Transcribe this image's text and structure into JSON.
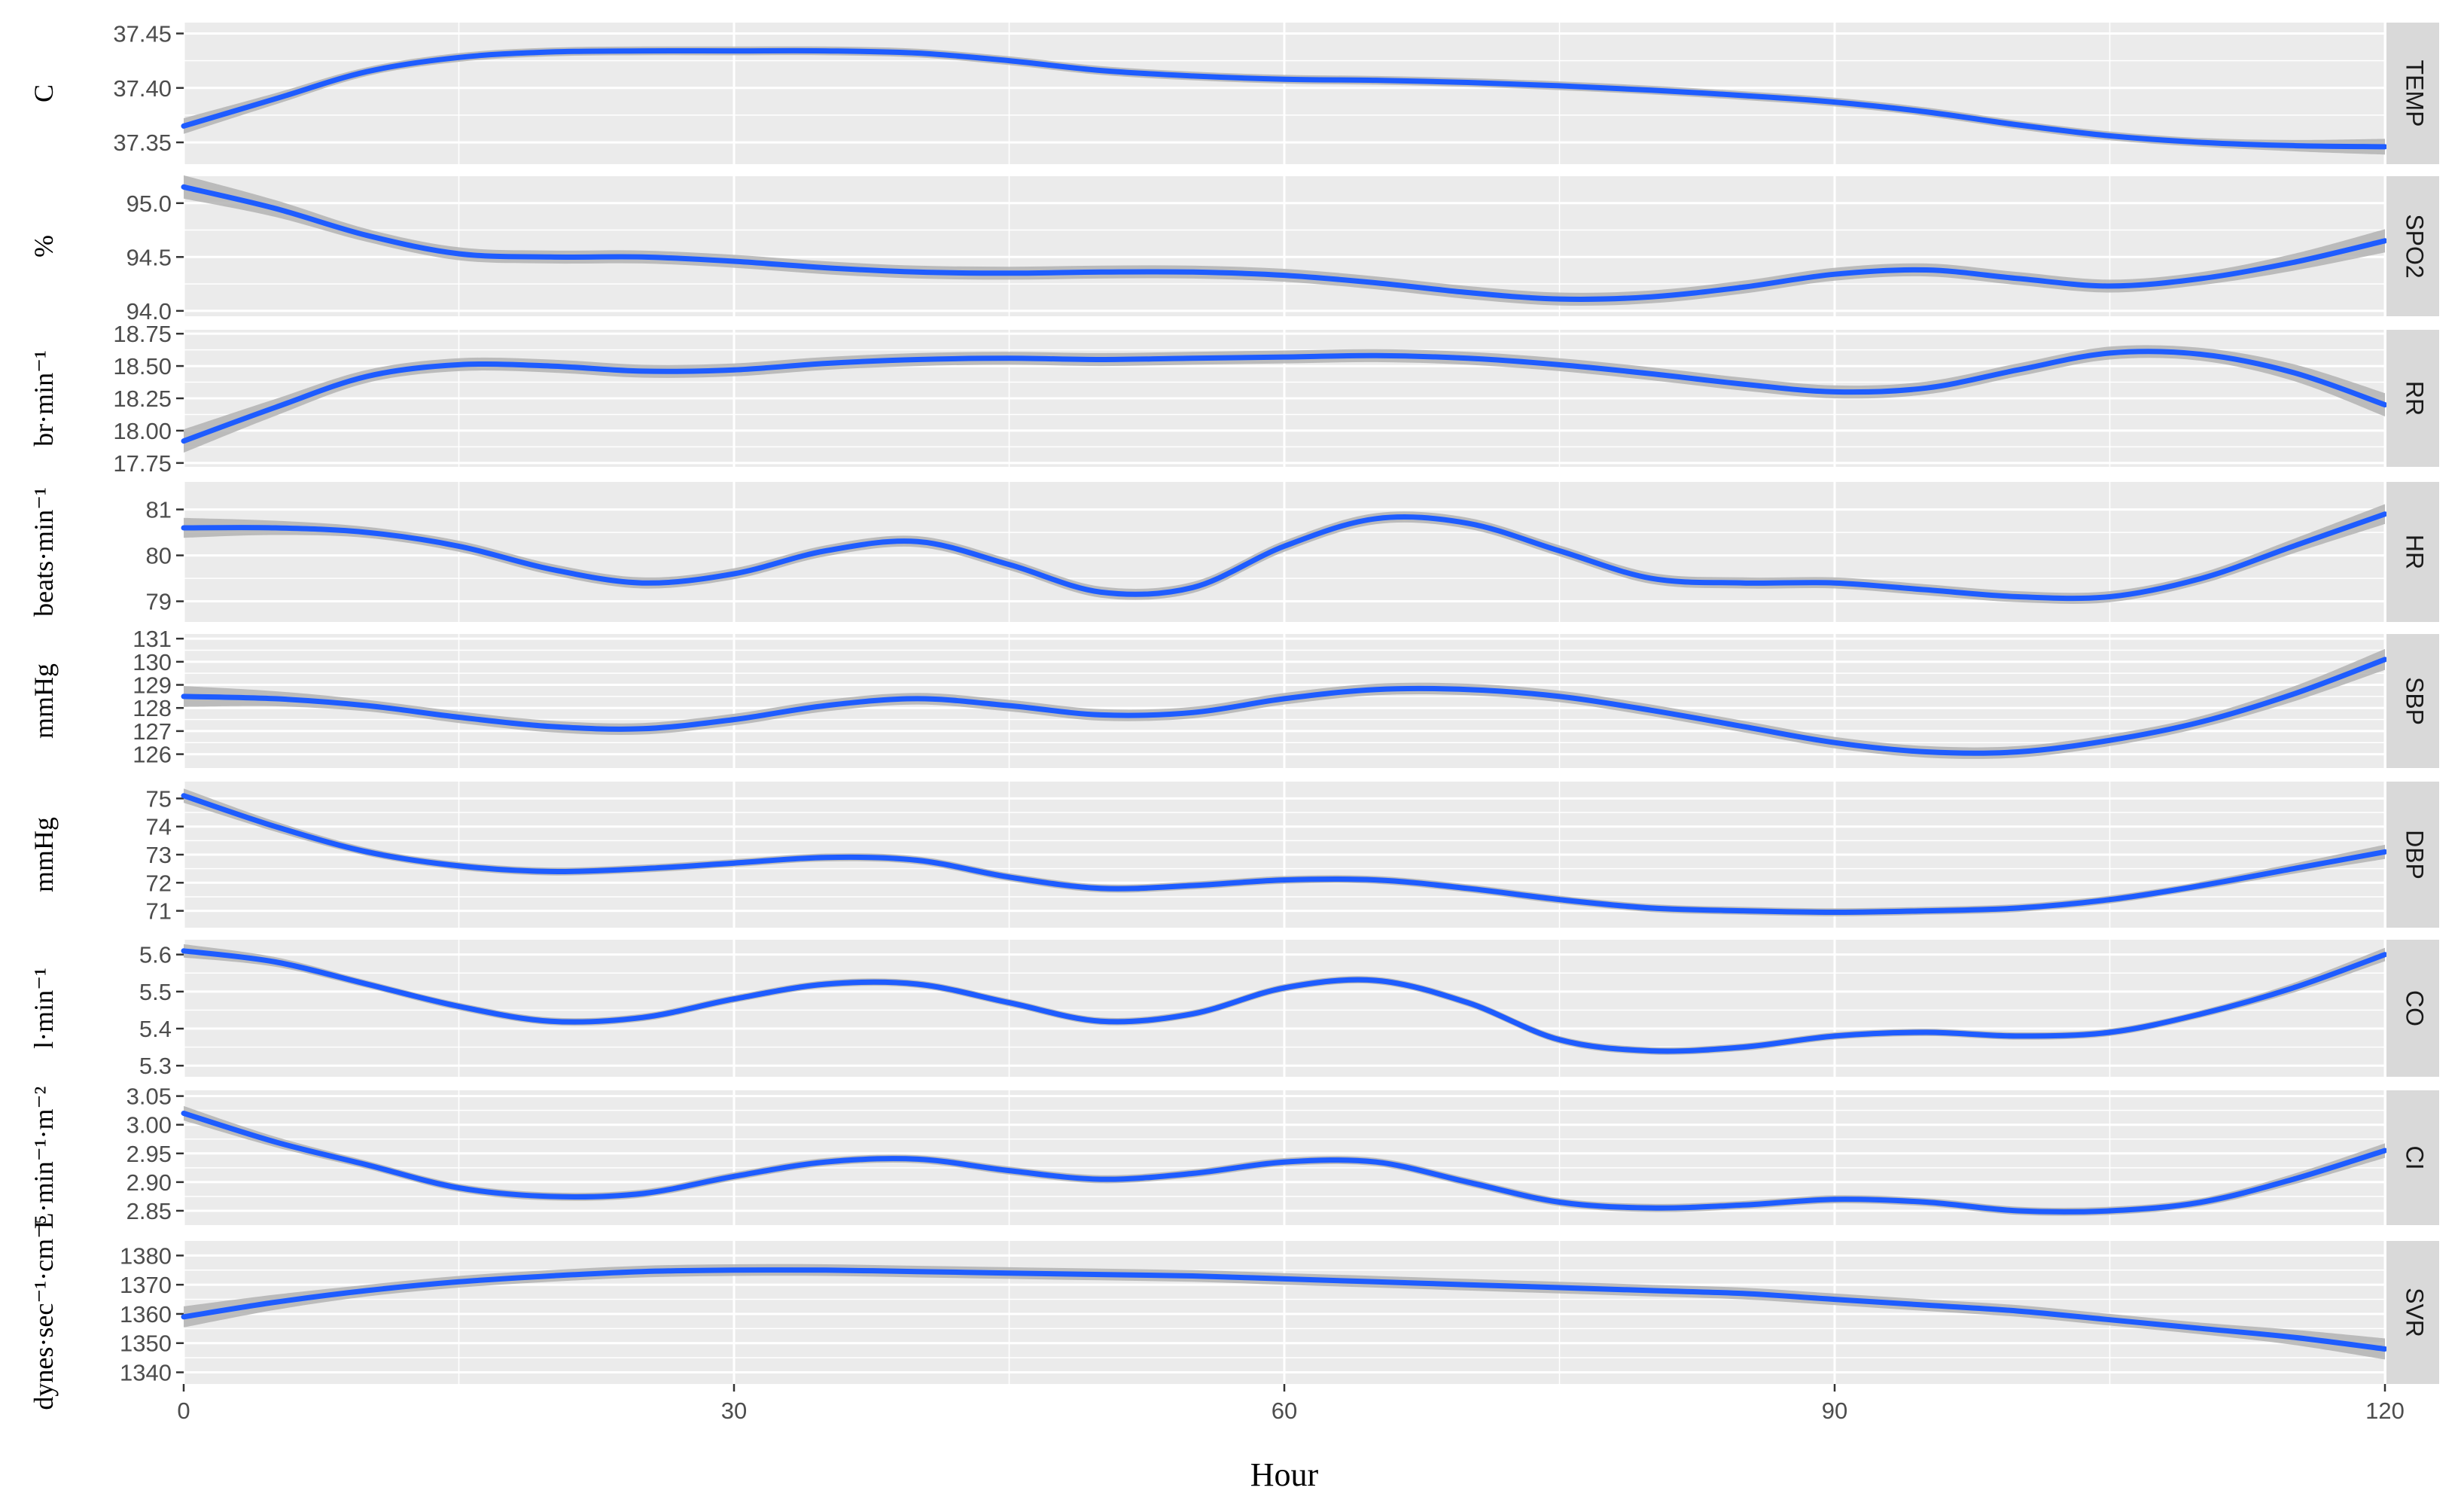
{
  "chart_data": {
    "type": "line",
    "facet": "rows",
    "xlabel": "Hour",
    "xlim": [
      0,
      120
    ],
    "xticks": [
      0,
      30,
      60,
      90,
      120
    ],
    "grid": true,
    "colors": {
      "line": "#1e5cff",
      "ribbon": "#b3b3b3",
      "panel": "#ebebeb",
      "strip": "#d9d9d9",
      "grid": "#ffffff"
    },
    "panels": [
      {
        "strip": "TEMP",
        "ylabel": "C",
        "ylim": [
          37.33,
          37.46
        ],
        "yticks": [
          37.35,
          37.4,
          37.45
        ],
        "tick_labels": [
          "37.35",
          "37.40",
          "37.45"
        ],
        "x": [
          0,
          5,
          10,
          15,
          20,
          25,
          30,
          35,
          40,
          45,
          50,
          55,
          60,
          65,
          70,
          75,
          80,
          85,
          90,
          95,
          100,
          105,
          110,
          115,
          120
        ],
        "y": [
          37.365,
          37.39,
          37.415,
          37.428,
          37.433,
          37.434,
          37.434,
          37.434,
          37.432,
          37.425,
          37.416,
          37.411,
          37.408,
          37.407,
          37.405,
          37.402,
          37.398,
          37.393,
          37.387,
          37.378,
          37.366,
          37.356,
          37.35,
          37.347,
          37.346
        ]
      },
      {
        "strip": "SPO2",
        "ylabel": "%",
        "ylim": [
          93.95,
          95.25
        ],
        "yticks": [
          94.0,
          94.5,
          95.0
        ],
        "tick_labels": [
          "94.0",
          "94.5",
          "95.0"
        ],
        "x": [
          0,
          5,
          10,
          15,
          20,
          25,
          30,
          35,
          40,
          45,
          50,
          55,
          60,
          65,
          70,
          75,
          80,
          85,
          90,
          95,
          100,
          105,
          110,
          115,
          120
        ],
        "y": [
          95.15,
          94.95,
          94.7,
          94.53,
          94.5,
          94.5,
          94.46,
          94.4,
          94.36,
          94.35,
          94.36,
          94.36,
          94.33,
          94.26,
          94.17,
          94.11,
          94.13,
          94.22,
          94.34,
          94.38,
          94.3,
          94.23,
          94.3,
          94.45,
          94.65
        ]
      },
      {
        "strip": "RR",
        "ylabel": "br·min⁻¹",
        "ylim": [
          17.72,
          18.78
        ],
        "yticks": [
          17.75,
          18.0,
          18.25,
          18.5,
          18.75
        ],
        "tick_labels": [
          "17.75",
          "18.00",
          "18.25",
          "18.50",
          "18.75"
        ],
        "x": [
          0,
          5,
          10,
          15,
          20,
          25,
          30,
          35,
          40,
          45,
          50,
          55,
          60,
          65,
          70,
          75,
          80,
          85,
          90,
          95,
          100,
          105,
          110,
          115,
          120
        ],
        "y": [
          17.92,
          18.18,
          18.42,
          18.51,
          18.5,
          18.46,
          18.47,
          18.52,
          18.55,
          18.56,
          18.55,
          18.56,
          18.57,
          18.58,
          18.56,
          18.51,
          18.44,
          18.36,
          18.3,
          18.33,
          18.47,
          18.6,
          18.59,
          18.45,
          18.2
        ]
      },
      {
        "strip": "HR",
        "ylabel": "beats·min⁻¹",
        "ylim": [
          78.55,
          81.6
        ],
        "yticks": [
          79,
          80,
          81
        ],
        "tick_labels": [
          "79",
          "80",
          "81"
        ],
        "x": [
          0,
          5,
          10,
          15,
          20,
          25,
          30,
          35,
          40,
          45,
          50,
          55,
          60,
          65,
          70,
          75,
          80,
          85,
          90,
          95,
          100,
          105,
          110,
          115,
          120
        ],
        "y": [
          80.6,
          80.6,
          80.5,
          80.2,
          79.7,
          79.4,
          79.6,
          80.1,
          80.3,
          79.8,
          79.2,
          79.3,
          80.2,
          80.8,
          80.7,
          80.1,
          79.5,
          79.4,
          79.4,
          79.25,
          79.1,
          79.1,
          79.5,
          80.2,
          80.9
        ]
      },
      {
        "strip": "SBP",
        "ylabel": "mmHg",
        "ylim": [
          125.4,
          131.2
        ],
        "yticks": [
          126,
          127,
          128,
          129,
          130,
          131
        ],
        "tick_labels": [
          "126",
          "127",
          "128",
          "129",
          "130",
          "131"
        ],
        "x": [
          0,
          5,
          10,
          15,
          20,
          25,
          30,
          35,
          40,
          45,
          50,
          55,
          60,
          65,
          70,
          75,
          80,
          85,
          90,
          95,
          100,
          105,
          110,
          115,
          120
        ],
        "y": [
          128.5,
          128.4,
          128.1,
          127.6,
          127.2,
          127.1,
          127.5,
          128.1,
          128.4,
          128.1,
          127.7,
          127.8,
          128.4,
          128.8,
          128.8,
          128.5,
          127.9,
          127.2,
          126.5,
          126.1,
          126.1,
          126.6,
          127.4,
          128.6,
          130.1
        ]
      },
      {
        "strip": "DBP",
        "ylabel": "mmHg",
        "ylim": [
          70.4,
          75.6
        ],
        "yticks": [
          71,
          72,
          73,
          74,
          75
        ],
        "tick_labels": [
          "71",
          "72",
          "73",
          "74",
          "75"
        ],
        "x": [
          0,
          5,
          10,
          15,
          20,
          25,
          30,
          35,
          40,
          45,
          50,
          55,
          60,
          65,
          70,
          75,
          80,
          85,
          90,
          95,
          100,
          105,
          110,
          115,
          120
        ],
        "y": [
          75.1,
          74.0,
          73.1,
          72.6,
          72.4,
          72.5,
          72.7,
          72.9,
          72.8,
          72.2,
          71.8,
          71.9,
          72.1,
          72.1,
          71.8,
          71.4,
          71.1,
          71.0,
          70.95,
          71.0,
          71.1,
          71.4,
          71.9,
          72.5,
          73.1
        ]
      },
      {
        "strip": "CO",
        "ylabel": "l·min⁻¹",
        "ylim": [
          5.27,
          5.64
        ],
        "yticks": [
          5.3,
          5.4,
          5.5,
          5.6
        ],
        "tick_labels": [
          "5.3",
          "5.4",
          "5.5",
          "5.6"
        ],
        "x": [
          0,
          5,
          10,
          15,
          20,
          25,
          30,
          35,
          40,
          45,
          50,
          55,
          60,
          65,
          70,
          75,
          80,
          85,
          90,
          95,
          100,
          105,
          110,
          115,
          120
        ],
        "y": [
          5.61,
          5.58,
          5.52,
          5.46,
          5.42,
          5.43,
          5.48,
          5.52,
          5.52,
          5.47,
          5.42,
          5.44,
          5.51,
          5.53,
          5.47,
          5.37,
          5.34,
          5.35,
          5.38,
          5.39,
          5.38,
          5.39,
          5.44,
          5.51,
          5.6
        ]
      },
      {
        "strip": "CI",
        "ylabel": "L·min⁻¹·m⁻²",
        "ylim": [
          2.825,
          3.06
        ],
        "yticks": [
          2.85,
          2.9,
          2.95,
          3.0,
          3.05
        ],
        "tick_labels": [
          "2.85",
          "2.90",
          "2.95",
          "3.00",
          "3.05"
        ],
        "x": [
          0,
          5,
          10,
          15,
          20,
          25,
          30,
          35,
          40,
          45,
          50,
          55,
          60,
          65,
          70,
          75,
          80,
          85,
          90,
          95,
          100,
          105,
          110,
          115,
          120
        ],
        "y": [
          3.02,
          2.97,
          2.93,
          2.89,
          2.875,
          2.88,
          2.91,
          2.935,
          2.94,
          2.92,
          2.905,
          2.915,
          2.935,
          2.935,
          2.9,
          2.865,
          2.855,
          2.86,
          2.87,
          2.865,
          2.85,
          2.85,
          2.865,
          2.905,
          2.955
        ]
      },
      {
        "strip": "SVR",
        "ylabel": "dynes·sec⁻¹·cm⁻⁵",
        "ylim": [
          1336,
          1385
        ],
        "yticks": [
          1340,
          1350,
          1360,
          1370,
          1380
        ],
        "tick_labels": [
          "1340",
          "1350",
          "1360",
          "1370",
          "1380"
        ],
        "x": [
          0,
          5,
          10,
          15,
          20,
          25,
          30,
          35,
          40,
          45,
          50,
          55,
          60,
          65,
          70,
          75,
          80,
          85,
          90,
          95,
          100,
          105,
          110,
          115,
          120
        ],
        "y": [
          1359,
          1364,
          1368,
          1371,
          1373,
          1374.5,
          1375,
          1375,
          1374.5,
          1374,
          1373.5,
          1373,
          1372,
          1371,
          1370,
          1369,
          1368,
          1367,
          1365,
          1363,
          1361,
          1358,
          1355,
          1352,
          1348
        ]
      }
    ]
  }
}
